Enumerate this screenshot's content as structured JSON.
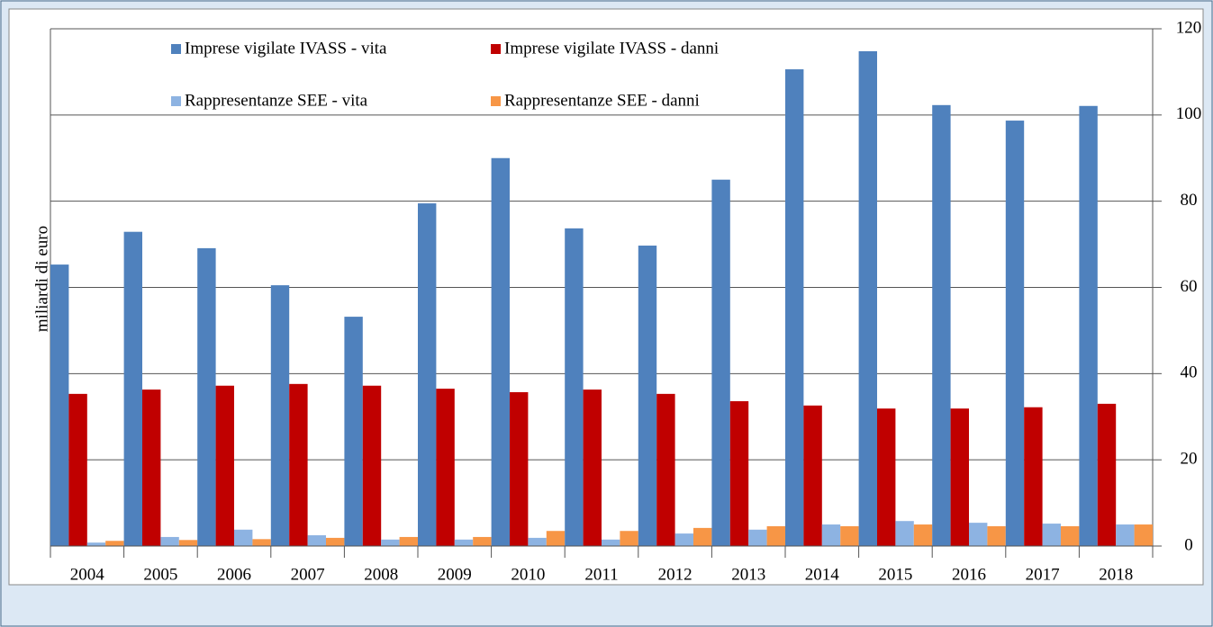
{
  "chart_data": {
    "type": "bar",
    "y_axis_label": "miliardi di euro",
    "categories": [
      "2004",
      "2005",
      "2006",
      "2007",
      "2008",
      "2009",
      "2010",
      "2011",
      "2012",
      "2013",
      "2014",
      "2015",
      "2016",
      "2017",
      "2018"
    ],
    "series": [
      {
        "name": "Imprese vigilate IVASS - vita",
        "color": "#4f81bd",
        "values": [
          65.3,
          72.9,
          69.1,
          60.5,
          53.2,
          79.5,
          90.0,
          73.7,
          69.7,
          85.0,
          110.6,
          114.8,
          102.3,
          98.7,
          102.1
        ]
      },
      {
        "name": "Imprese vigilate IVASS - danni",
        "color": "#c00000",
        "values": [
          35.3,
          36.3,
          37.2,
          37.6,
          37.2,
          36.5,
          35.7,
          36.3,
          35.3,
          33.6,
          32.6,
          31.9,
          31.9,
          32.2,
          33.0
        ]
      },
      {
        "name": "Rappresentanze SEE - vita",
        "color": "#8db3e2",
        "values": [
          0.8,
          2.1,
          3.8,
          2.5,
          1.5,
          1.5,
          1.9,
          1.5,
          2.9,
          3.8,
          5.0,
          5.8,
          5.4,
          5.2,
          5.0
        ]
      },
      {
        "name": "Rappresentanze SEE - danni",
        "color": "#f79646",
        "values": [
          1.2,
          1.4,
          1.6,
          1.9,
          2.1,
          2.1,
          3.5,
          3.5,
          4.2,
          4.6,
          4.6,
          5.0,
          4.6,
          4.6,
          5.0
        ]
      }
    ],
    "ylim": [
      0,
      120
    ],
    "yticks": [
      0,
      20,
      40,
      60,
      80,
      100,
      120
    ],
    "y_axis_side": "right",
    "grid": true
  }
}
